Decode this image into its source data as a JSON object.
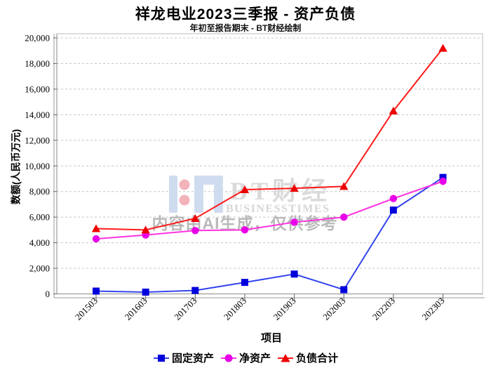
{
  "chart_data": {
    "type": "line",
    "title": "祥龙电业2023三季报 - 资产负债",
    "subtitle": "年初至报告期末 - BT财经绘制",
    "xlabel": "项目",
    "ylabel": "数额(人民币万元)",
    "ylim": [
      0,
      20000
    ],
    "ytick_step": 2000,
    "grid": true,
    "legend_position": "bottom",
    "categories": [
      "201503",
      "201603",
      "201703",
      "201803",
      "201903",
      "202003",
      "202203",
      "202303"
    ],
    "series": [
      {
        "name": "固定资产",
        "marker": "square",
        "color": "#0000dd",
        "line_color": "#3344ee",
        "values": [
          220,
          140,
          270,
          900,
          1550,
          330,
          6550,
          9100
        ]
      },
      {
        "name": "净资产",
        "marker": "circle",
        "color": "#e800e8",
        "line_color": "#ff33e0",
        "values": [
          4300,
          4600,
          4950,
          5000,
          5600,
          6000,
          7450,
          8800
        ]
      },
      {
        "name": "负债合计",
        "marker": "triangle",
        "color": "#ee0000",
        "line_color": "#ff1a1a",
        "values": [
          5100,
          5000,
          5900,
          8150,
          8250,
          8400,
          14300,
          19200
        ]
      }
    ]
  },
  "watermark": {
    "brand_cn": "BT财经",
    "brand_en": "BUSINESSTIMES",
    "ai_notice": "内容由AI生成，仅供参考"
  }
}
